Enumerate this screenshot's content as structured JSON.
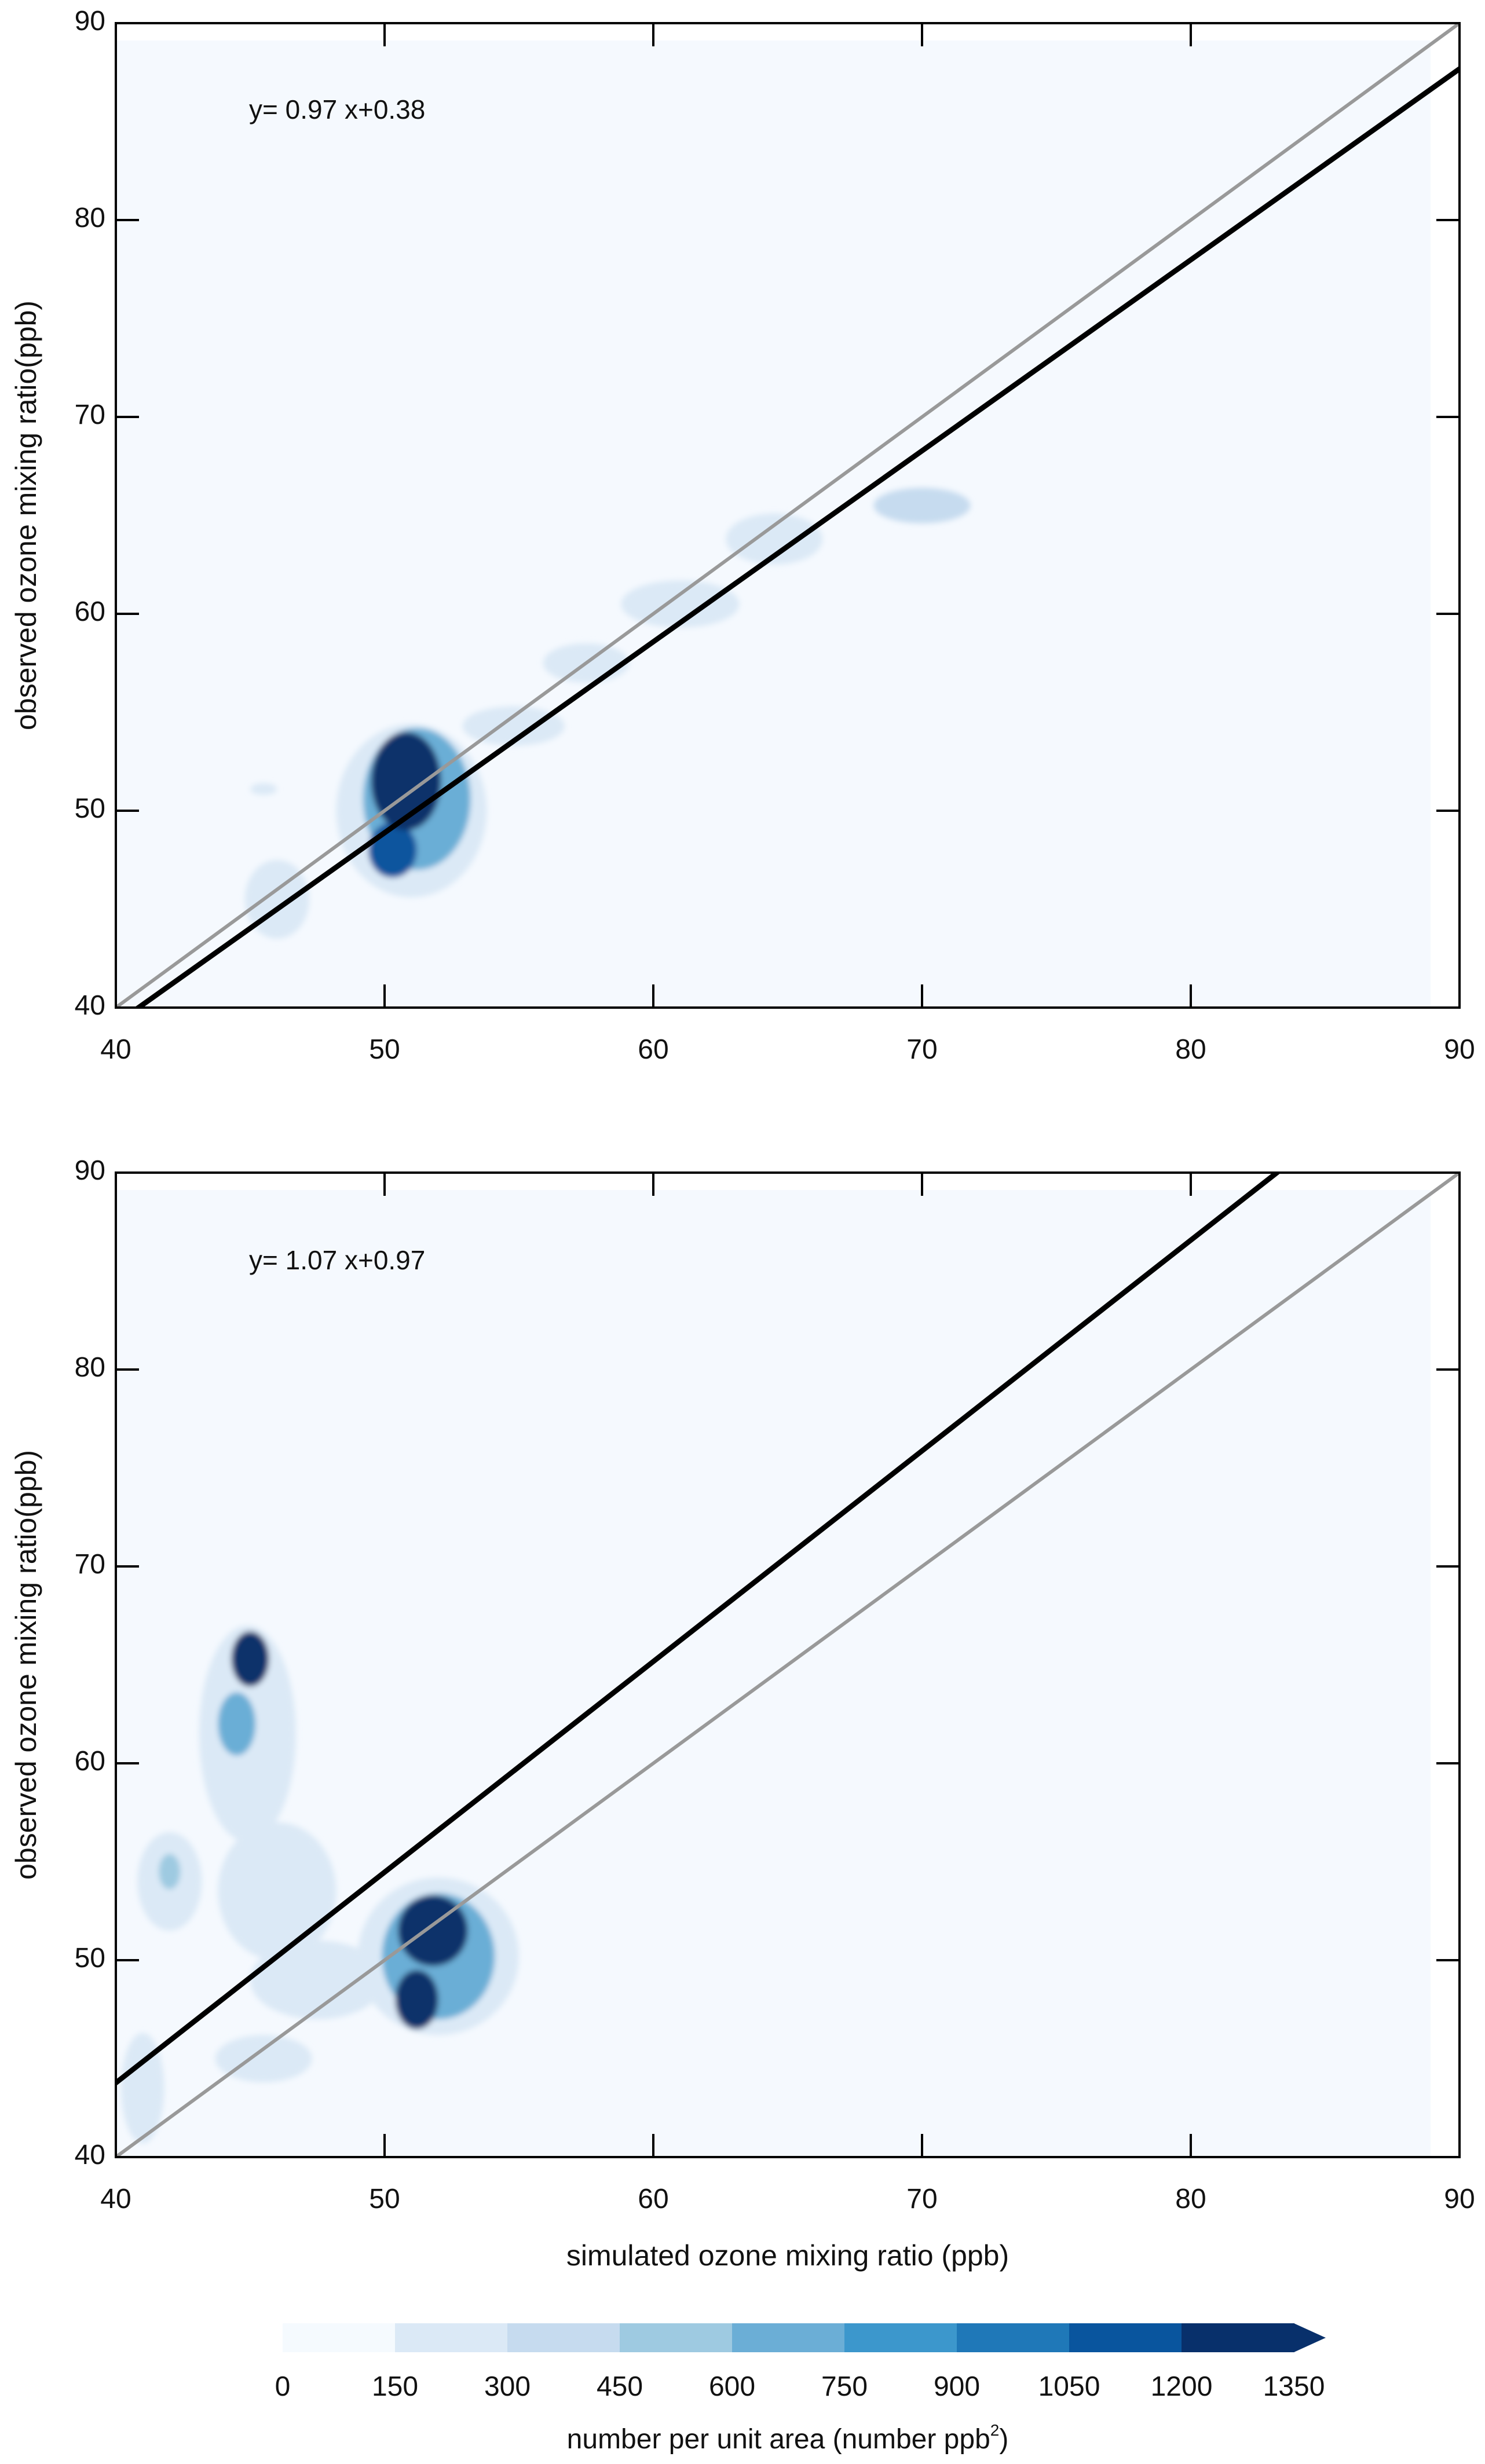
{
  "chart_data": [
    {
      "type": "density_scatter",
      "id": "top",
      "xlabel": "",
      "ylabel": "observed ozone mixing ratio(ppb)",
      "xlim": [
        40,
        90
      ],
      "ylim": [
        40,
        90
      ],
      "xticks": [
        40,
        50,
        60,
        70,
        80,
        90
      ],
      "yticks": [
        40,
        50,
        60,
        70,
        80,
        90
      ],
      "annotation": "y=  0.97 x+0.38",
      "fit_line": {
        "slope": 0.97,
        "intercept": 0.38,
        "color": "#000000"
      },
      "reference_line": {
        "slope": 1,
        "intercept": 0,
        "color": "#999999"
      },
      "density_blobs": [
        {
          "x": 50.8,
          "y": 51.5,
          "rx": 1.3,
          "ry": 2.5,
          "level": 9
        },
        {
          "x": 50.3,
          "y": 48.0,
          "rx": 0.9,
          "ry": 1.4,
          "level": 7
        },
        {
          "x": 51.2,
          "y": 50.6,
          "rx": 2.0,
          "ry": 3.6,
          "level": 4
        },
        {
          "x": 51.0,
          "y": 50.0,
          "rx": 2.8,
          "ry": 4.4,
          "level": 1
        },
        {
          "x": 54.8,
          "y": 54.3,
          "rx": 1.9,
          "ry": 1.0,
          "level": 1
        },
        {
          "x": 57.5,
          "y": 57.5,
          "rx": 1.6,
          "ry": 1.0,
          "level": 1
        },
        {
          "x": 61.0,
          "y": 60.5,
          "rx": 2.2,
          "ry": 1.2,
          "level": 1
        },
        {
          "x": 64.5,
          "y": 63.8,
          "rx": 1.8,
          "ry": 1.3,
          "level": 1
        },
        {
          "x": 70.0,
          "y": 65.5,
          "rx": 1.8,
          "ry": 0.9,
          "level": 2
        },
        {
          "x": 46.0,
          "y": 45.5,
          "rx": 1.2,
          "ry": 2.0,
          "level": 1
        },
        {
          "x": 45.5,
          "y": 51.1,
          "rx": 0.5,
          "ry": 0.3,
          "level": 1
        }
      ]
    },
    {
      "type": "density_scatter",
      "id": "bottom",
      "xlabel": "simulated ozone mixing ratio (ppb)",
      "ylabel": "observed ozone mixing ratio(ppb)",
      "xlim": [
        40,
        90
      ],
      "ylim": [
        40,
        90
      ],
      "xticks": [
        40,
        50,
        60,
        70,
        80,
        90
      ],
      "yticks": [
        40,
        50,
        60,
        70,
        80,
        90
      ],
      "annotation": "y=  1.07 x+0.97",
      "fit_line": {
        "slope": 1.07,
        "intercept": 0.97,
        "color": "#000000"
      },
      "reference_line": {
        "slope": 1,
        "intercept": 0,
        "color": "#999999"
      },
      "density_blobs": [
        {
          "x": 51.8,
          "y": 51.5,
          "rx": 1.3,
          "ry": 1.8,
          "level": 9
        },
        {
          "x": 51.2,
          "y": 48.0,
          "rx": 0.8,
          "ry": 1.5,
          "level": 8
        },
        {
          "x": 52.0,
          "y": 50.2,
          "rx": 2.1,
          "ry": 3.2,
          "level": 4
        },
        {
          "x": 52.0,
          "y": 50.2,
          "rx": 3.0,
          "ry": 4.0,
          "level": 1
        },
        {
          "x": 45.0,
          "y": 65.3,
          "rx": 0.7,
          "ry": 1.4,
          "level": 9
        },
        {
          "x": 44.5,
          "y": 62.0,
          "rx": 0.7,
          "ry": 1.6,
          "level": 4
        },
        {
          "x": 44.9,
          "y": 61.5,
          "rx": 1.8,
          "ry": 5.5,
          "level": 1
        },
        {
          "x": 42.0,
          "y": 54.0,
          "rx": 1.2,
          "ry": 2.5,
          "level": 1
        },
        {
          "x": 42.0,
          "y": 54.5,
          "rx": 0.4,
          "ry": 0.9,
          "level": 3
        },
        {
          "x": 46.0,
          "y": 53.5,
          "rx": 2.2,
          "ry": 3.5,
          "level": 1
        },
        {
          "x": 47.5,
          "y": 49.0,
          "rx": 2.5,
          "ry": 2.0,
          "level": 1
        },
        {
          "x": 45.5,
          "y": 45.0,
          "rx": 1.8,
          "ry": 1.2,
          "level": 1
        },
        {
          "x": 41.0,
          "y": 43.5,
          "rx": 0.8,
          "ry": 2.8,
          "level": 1
        }
      ]
    }
  ],
  "colorbar": {
    "label": "number per unit area (number ppb",
    "label_superscript": "2",
    "label_suffix": ")",
    "ticks": [
      "0",
      "150",
      "300",
      "450",
      "600",
      "750",
      "900",
      "1050",
      "1200",
      "1350"
    ],
    "colors": [
      "#f5fafe",
      "#dbe9f6",
      "#c6dbef",
      "#9ecae1",
      "#6baed6",
      "#3c97cc",
      "#1f78b8",
      "#09559e",
      "#08306b"
    ],
    "background": "#f5f9fe"
  }
}
